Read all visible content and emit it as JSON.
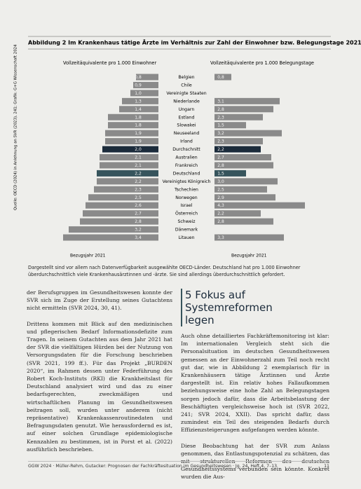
{
  "header": {
    "title": "Abbildung 2 Im Krankenhaus tätige Ärzte im Verhältnis zur Zahl der Einwohner bzw. Belegungstage 2021"
  },
  "chart_data": {
    "type": "bar",
    "categories": [
      "Belgien",
      "Chile",
      "Vereinigte Staaten",
      "Niederlande",
      "Ungarn",
      "Estland",
      "Slowakei",
      "Neuseeland",
      "Irland",
      "Durchschnitt",
      "Australien",
      "Frankreich",
      "Deutschland",
      "Vereinigtes Königreich",
      "Tschechien",
      "Norwegen",
      "Israel",
      "Österreich",
      "Schweiz",
      "Dänemark",
      "Litauen"
    ],
    "series": [
      {
        "name": "Vollzeitäquivalente pro 1.000 Einwohner",
        "reference": "Bezugsjahr 2021",
        "values": [
          0.8,
          0.9,
          1.0,
          1.3,
          1.4,
          1.8,
          1.8,
          1.9,
          1.9,
          2.0,
          2.1,
          2.1,
          2.2,
          2.2,
          2.3,
          2.5,
          2.6,
          2.7,
          2.8,
          3.2,
          3.4
        ],
        "value_labels": [
          "0,8",
          "0,9",
          "1,0",
          "1,3",
          "1,4",
          "1,8",
          "1,8",
          "1,9",
          "1,9",
          "2,0",
          "2,1",
          "2,1",
          "2,2",
          "2,2",
          "2,3",
          "2,5",
          "2,6",
          "2,7",
          "2,8",
          "3,2",
          "3,4"
        ],
        "colors": [
          "#8a8a8a",
          "#8a8a8a",
          "#8a8a8a",
          "#8a8a8a",
          "#8a8a8a",
          "#8a8a8a",
          "#8a8a8a",
          "#8a8a8a",
          "#8a8a8a",
          "#1b2b3b",
          "#8a8a8a",
          "#8a8a8a",
          "#36545c",
          "#8a8a8a",
          "#8a8a8a",
          "#8a8a8a",
          "#8a8a8a",
          "#8a8a8a",
          "#8a8a8a",
          "#8a8a8a",
          "#8a8a8a"
        ]
      },
      {
        "name": "Vollzeitäquivalente pro 1.000 Belegungstage",
        "reference": "Bezugsjahr 2021",
        "values": [
          0.8,
          null,
          null,
          3.1,
          2.8,
          2.3,
          1.5,
          3.2,
          2.3,
          2.2,
          2.7,
          2.8,
          1.5,
          3.0,
          2.5,
          2.9,
          4.3,
          2.2,
          2.8,
          null,
          3.3
        ],
        "value_labels": [
          "0,8",
          null,
          null,
          "3,1",
          "2,8",
          "2,3",
          "1,5",
          "3,2",
          "2,3",
          "2,2",
          "2,7",
          "2,8",
          "1,5",
          "3,0",
          "2,5",
          "2,9",
          "4,3",
          "2,2",
          "2,8",
          null,
          "3,3"
        ],
        "colors": [
          "#8a8a8a",
          "#8a8a8a",
          "#8a8a8a",
          "#8a8a8a",
          "#8a8a8a",
          "#8a8a8a",
          "#8a8a8a",
          "#8a8a8a",
          "#8a8a8a",
          "#1b2b3b",
          "#8a8a8a",
          "#8a8a8a",
          "#36545c",
          "#8a8a8a",
          "#8a8a8a",
          "#8a8a8a",
          "#8a8a8a",
          "#8a8a8a",
          "#8a8a8a",
          "#8a8a8a",
          "#8a8a8a"
        ]
      }
    ],
    "source": "Quelle: OECD (2024) in Anlehnung an SVR (2023), 241; Grafik: G+G Wissenschaft 2024",
    "caption": "Dargestellt sind vor allem nach Datenverfügbarkeit ausgewählte OECD-Länder. Deutschland hat pro 1.000 Einwohner überdurchschnittlich viele Krankenhausärztinnen und -ärzte. Sie sind allerdings überdurchschnittlich gefordert."
  },
  "article": {
    "left": [
      "der Berufsgruppen im Gesundheitswesen konnte der SVR sich im Zuge der Erstellung seines Gutachtens nicht ermitteln (SVR 2024, 30, 41).",
      "Drittens kommen mit Blick auf den medizinischen und pflegerischen Bedarf Informationsdefizite zum Tragen. In seinem Gutachten aus dem Jahr 2021 hat der SVR die vielfältigen Hürden bei der Nutzung von Versorgungsdaten für die Forschung beschrieben (SVR 2021, 199 ff.). Für das Projekt „BURDEN 2020“, im Rahmen dessen unter Federführung des Robert Koch-Instituts (RKI) die Krankheitslast für Deutschland analysiert wird und das zu einer bedarfsgerechten, zweckmäßigen und wirtschaftlichen Planung im Gesundheitswesen beitragen soll, wurden unter anderem (nicht repräsentative) Krankenkassenroutinedaten und Befragungsdaten genutzt. Wie herausfordernd es ist, auf einer solchen Grundlage epidemiologische Kennzahlen zu bestimmen, ist in Porst et al. (2022) ausführlich beschrieben."
    ],
    "heading": "5 Fokus auf Systemreformen legen",
    "right": [
      "Auch ohne detailliertes Fachkräftemonitoring ist klar: Im internationalen Vergleich steht sich die Personalsituation im deutschen Gesundheitswesen gemessen an der Einwohnerzahl zum Teil noch recht gut dar, wie in Abbildung 2 exemplarisch für in Krankenhäusern tätige Ärztinnen und Ärzte dargestellt ist. Ein relativ hohes Fallaufkommen beziehungsweise eine hohe Zahl an Belegungstagen sorgen jedoch dafür, dass die Arbeitsbelastung der Beschäftigten vergleichsweise hoch ist (SVR 2022, 241; SVR 2024, XXII). Das spricht dafür, dass zumindest ein Teil des steigenden Bedarfs durch Effizienzsteigerungen aufgefangen werden könnte.",
      "Diese Beobachtung hat der SVR zum Anlass genommen, das Entlastungspotenzial zu schätzen, das mit strukturellen Reformen des deutschen Gesundheitssystems verbunden sein könnte. Konkret wurden die Aus-"
    ]
  },
  "footer": {
    "text": "GGW 2024 · Müller-Rehm, Gutacker: Prognosen der Fachkräftesituation im Gesundheitswesen · Jg. 24, Heft 4, 7–13",
    "page": "11"
  }
}
